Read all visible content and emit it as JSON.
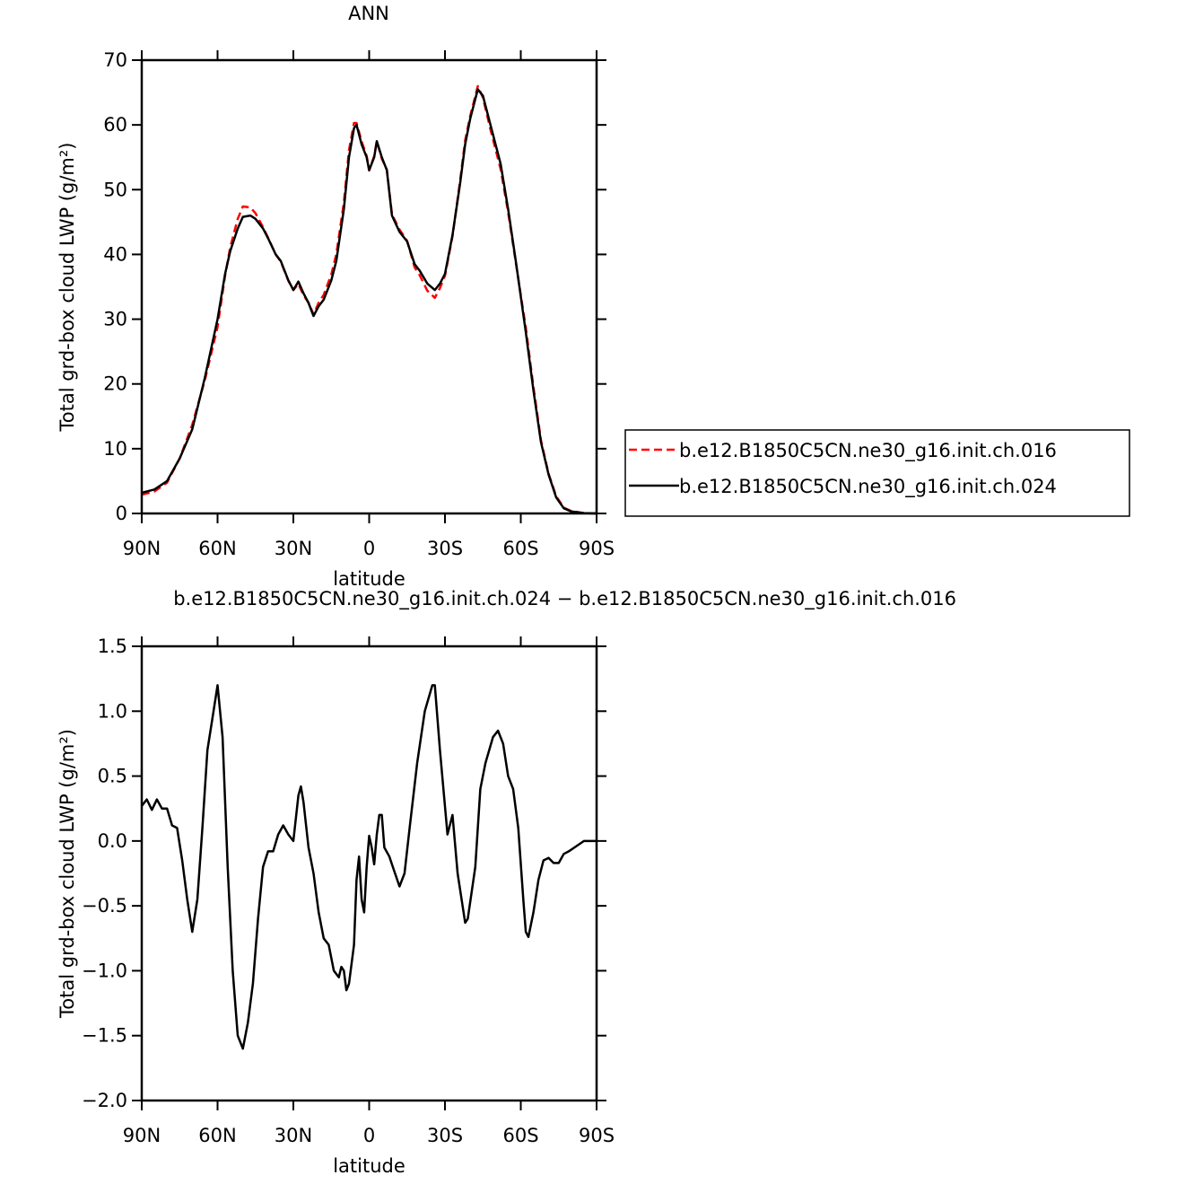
{
  "chart_data": [
    {
      "type": "line",
      "title": "ANN",
      "xlabel": "latitude",
      "ylabel": "Total grd-box cloud LWP (g/m²)",
      "x": [
        90,
        85,
        80,
        75,
        70,
        65,
        60,
        57,
        55,
        52,
        50,
        47,
        45,
        42,
        40,
        37,
        35,
        32,
        30,
        28,
        26,
        24,
        22,
        20,
        18,
        15,
        13,
        10,
        8,
        6,
        5,
        3,
        1,
        0,
        -2,
        -3,
        -5,
        -7,
        -9,
        -12,
        -15,
        -18,
        -20,
        -23,
        -26,
        -28,
        -30,
        -33,
        -36,
        -38,
        -40,
        -43,
        -45,
        -48,
        -52,
        -55,
        -58,
        -62,
        -65,
        -68,
        -71,
        -74,
        -77,
        -80,
        -85,
        -90
      ],
      "series": [
        {
          "name": "b.e12.B1850C5CN.ne30_g16.init.ch.016",
          "color": "#ff0000",
          "linestyle": "dashed",
          "values": [
            2.9,
            3.4,
            4.75,
            8.5,
            13.7,
            20.6,
            28.8,
            36.7,
            41.1,
            45.5,
            47.4,
            47.25,
            46.35,
            44.2,
            42.58,
            40.0,
            38.9,
            35.95,
            34.5,
            35.45,
            33.7,
            32.55,
            30.75,
            32.55,
            33.75,
            36.9,
            40.05,
            48,
            56.1,
            60.3,
            60.3,
            57.45,
            55.2,
            52.96,
            55.18,
            57.45,
            54.8,
            53.1,
            46.18,
            43.85,
            42.1,
            38.0,
            36.8,
            34.4,
            33.3,
            34.8,
            36.7,
            42.8,
            51.4,
            57.63,
            61.4,
            66.0,
            64.2,
            59.3,
            53.2,
            46.5,
            38.8,
            28.7,
            19.55,
            11.3,
            6.13,
            2.67,
            0.9,
            0.37,
            0.05,
            0
          ]
        },
        {
          "name": "b.e12.B1850C5CN.ne30_g16.init.ch.024",
          "color": "#000000",
          "linestyle": "solid",
          "values": [
            3.2,
            3.7,
            5.0,
            8.5,
            13,
            21,
            30,
            37,
            40.5,
            44,
            45.8,
            46,
            45.5,
            44,
            42.5,
            40,
            39,
            36,
            34.5,
            35.8,
            34,
            32.5,
            30.5,
            32,
            33,
            36,
            39,
            47,
            55,
            59.5,
            60,
            57,
            55,
            53,
            55,
            57.5,
            55,
            53,
            46,
            43.5,
            42,
            38.5,
            37.5,
            35.5,
            34.5,
            35.5,
            37,
            43,
            51,
            57,
            61,
            65.5,
            64.5,
            60,
            54,
            47,
            39,
            28,
            19,
            11,
            6,
            2.5,
            0.8,
            0.3,
            0.05,
            0
          ]
        }
      ],
      "xlim": [
        90,
        -90
      ],
      "xticks": [
        {
          "value": 90,
          "label": "90N"
        },
        {
          "value": 60,
          "label": "60N"
        },
        {
          "value": 30,
          "label": "30N"
        },
        0,
        {
          "value": -30,
          "label": "30S"
        },
        {
          "value": -60,
          "label": "60S"
        },
        {
          "value": -90,
          "label": "90S"
        }
      ],
      "ylim": [
        0,
        70
      ],
      "yticks": [
        0,
        10,
        20,
        30,
        40,
        50,
        60,
        70
      ],
      "legend": "right"
    },
    {
      "type": "line",
      "title": "b.e12.B1850C5CN.ne30_g16.init.ch.024 − b.e12.B1850C5CN.ne30_g16.init.ch.016",
      "xlabel": "latitude",
      "ylabel": "Total grd-box cloud LWP (g/m²)",
      "x": [
        90,
        88,
        86,
        84,
        82,
        80,
        78,
        76,
        74,
        72,
        70,
        68,
        66,
        64,
        62,
        60,
        58,
        56,
        54,
        52,
        50,
        48,
        46,
        44,
        42,
        40,
        38,
        36,
        34,
        32,
        30,
        28,
        27,
        26,
        24,
        22,
        20,
        18,
        16,
        14,
        12,
        11,
        10,
        9,
        8,
        6,
        5,
        4,
        3,
        2,
        1,
        0,
        -1,
        -2,
        -3,
        -4,
        -5,
        -6,
        -8,
        -9,
        -12,
        -14,
        -16,
        -19,
        -22,
        -25,
        -26,
        -28,
        -31,
        -33,
        -35,
        -38,
        -39,
        -42,
        -44,
        -46,
        -49,
        -51,
        -53,
        -55,
        -57,
        -59,
        -61,
        -62,
        -63,
        -65,
        -67,
        -69,
        -71,
        -73,
        -75,
        -77,
        -79,
        -82,
        -85,
        -90
      ],
      "values": [
        0.27,
        0.32,
        0.24,
        0.32,
        0.25,
        0.25,
        0.12,
        0.1,
        -0.15,
        -0.45,
        -0.7,
        -0.45,
        0.1,
        0.7,
        0.95,
        1.2,
        0.8,
        -0.2,
        -1.0,
        -1.5,
        -1.6,
        -1.4,
        -1.1,
        -0.6,
        -0.2,
        -0.08,
        -0.08,
        0.05,
        0.12,
        0.05,
        0.0,
        0.35,
        0.42,
        0.3,
        -0.05,
        -0.25,
        -0.55,
        -0.75,
        -0.8,
        -1.0,
        -1.05,
        -0.97,
        -1.0,
        -1.15,
        -1.1,
        -0.8,
        -0.3,
        -0.12,
        -0.45,
        -0.55,
        -0.2,
        0.04,
        -0.05,
        -0.18,
        0.05,
        0.2,
        0.2,
        -0.05,
        -0.12,
        -0.18,
        -0.35,
        -0.25,
        0.1,
        0.6,
        1.0,
        1.2,
        1.2,
        0.7,
        0.05,
        0.2,
        -0.25,
        -0.63,
        -0.6,
        -0.2,
        0.4,
        0.6,
        0.8,
        0.85,
        0.75,
        0.5,
        0.4,
        0.1,
        -0.45,
        -0.7,
        -0.74,
        -0.55,
        -0.3,
        -0.15,
        -0.13,
        -0.17,
        -0.17,
        -0.1,
        -0.08,
        -0.04,
        0,
        0
      ],
      "color": "#000000",
      "xlim": [
        90,
        -90
      ],
      "xticks": [
        {
          "value": 90,
          "label": "90N"
        },
        {
          "value": 60,
          "label": "60N"
        },
        {
          "value": 30,
          "label": "30N"
        },
        0,
        {
          "value": -30,
          "label": "30S"
        },
        {
          "value": -60,
          "label": "60S"
        },
        {
          "value": -90,
          "label": "90S"
        }
      ],
      "ylim": [
        -2.0,
        1.5
      ],
      "yticks": [
        1.5,
        {
          "value": 1.0,
          "label": "1.0"
        },
        0.5,
        {
          "value": 0.0,
          "label": "0.0"
        },
        {
          "value": -0.5,
          "label": "−0.5"
        },
        {
          "value": -1.0,
          "label": "−1.0"
        },
        {
          "value": -1.5,
          "label": "−1.5"
        },
        {
          "value": -2.0,
          "label": "−2.0"
        }
      ]
    }
  ]
}
